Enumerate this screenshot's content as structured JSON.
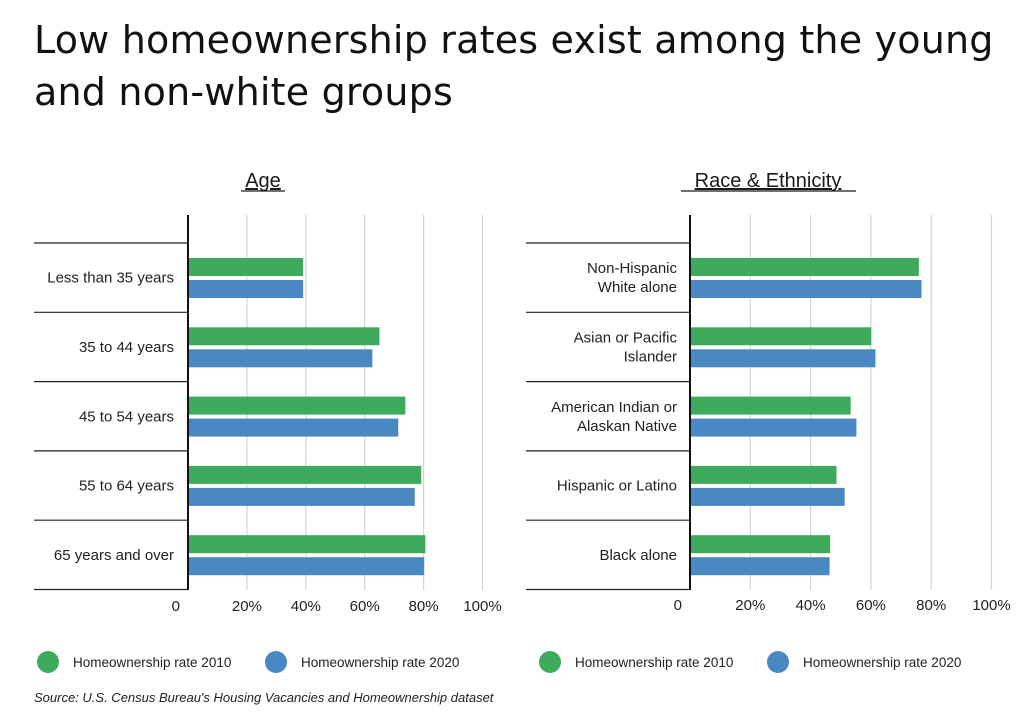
{
  "title": "Low homeownership rates exist among the young and non-white groups",
  "source": "Source:  U.S. Census Bureau's Housing Vacancies and Homeownership dataset",
  "colors": {
    "series_2010": "#3daa5c",
    "series_2020": "#4a88c2"
  },
  "chart_data": [
    {
      "type": "bar",
      "orientation": "horizontal",
      "title": "Age",
      "categories": [
        [
          "Less than 35 years"
        ],
        [
          "35 to 44 years"
        ],
        [
          "45 to 54 years"
        ],
        [
          "55 to 64 years"
        ],
        [
          "65 years and over"
        ]
      ],
      "series": [
        {
          "name": "Homeownership rate 2010",
          "values": [
            39.1,
            65.0,
            73.8,
            79.2,
            80.6
          ]
        },
        {
          "name": "Homeownership rate 2020",
          "values": [
            39.1,
            62.6,
            71.4,
            77.0,
            80.2
          ]
        }
      ],
      "xlim": [
        0,
        100
      ],
      "ticks": [
        "0",
        "20%",
        "40%",
        "60%",
        "80%",
        "100%"
      ],
      "grid": true,
      "legend": "bottom"
    },
    {
      "type": "bar",
      "orientation": "horizontal",
      "title": "Race & Ethnicity",
      "categories": [
        [
          "Non-Hispanic",
          "White alone"
        ],
        [
          "Asian or Pacific",
          "Islander"
        ],
        [
          "American Indian or",
          "Alaskan Native"
        ],
        [
          "Hispanic or Latino"
        ],
        [
          "Black alone"
        ]
      ],
      "series": [
        {
          "name": "Homeownership rate 2010",
          "values": [
            75.9,
            60.1,
            53.3,
            48.6,
            46.5
          ]
        },
        {
          "name": "Homeownership rate 2020",
          "values": [
            76.8,
            61.5,
            55.2,
            51.3,
            46.3
          ]
        }
      ],
      "xlim": [
        0,
        100
      ],
      "ticks": [
        "0",
        "20%",
        "40%",
        "60%",
        "80%",
        "100%"
      ],
      "grid": true,
      "legend": "bottom"
    }
  ]
}
